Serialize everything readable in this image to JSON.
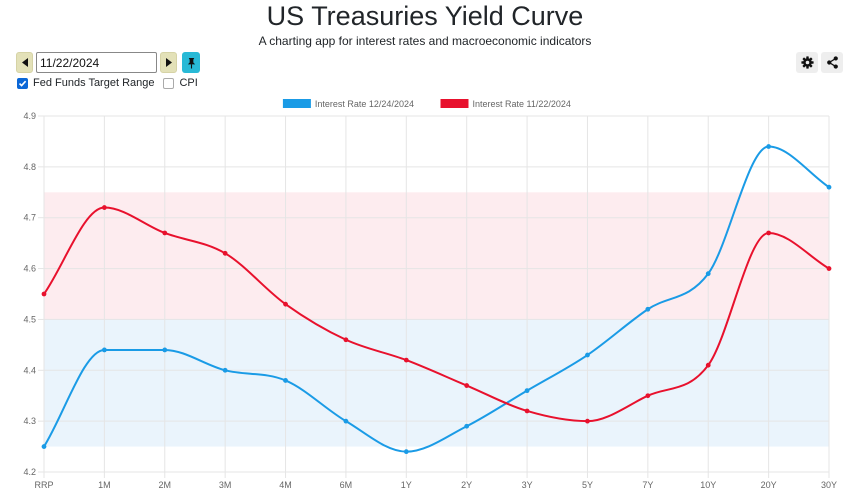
{
  "header": {
    "title": "US Treasuries Yield Curve",
    "subtitle": "A charting app for interest rates and macroeconomic indicators"
  },
  "controls": {
    "date_value": "11/22/2024",
    "options": [
      {
        "label": "Fed Funds Target Range",
        "checked": true
      },
      {
        "label": "CPI",
        "checked": false
      }
    ]
  },
  "chart_data": {
    "type": "line",
    "categories": [
      "RRP",
      "1M",
      "2M",
      "3M",
      "4M",
      "6M",
      "1Y",
      "2Y",
      "3Y",
      "5Y",
      "7Y",
      "10Y",
      "20Y",
      "30Y"
    ],
    "series": [
      {
        "name": "Interest Rate 12/24/2024",
        "color": "#1a9be6",
        "values": [
          4.25,
          4.44,
          4.44,
          4.4,
          4.38,
          4.3,
          4.24,
          4.29,
          4.36,
          4.43,
          4.52,
          4.59,
          4.84,
          4.76
        ]
      },
      {
        "name": "Interest Rate 11/22/2024",
        "color": "#e8112d",
        "values": [
          4.55,
          4.72,
          4.67,
          4.63,
          4.53,
          4.46,
          4.42,
          4.37,
          4.32,
          4.3,
          4.35,
          4.41,
          4.67,
          4.6
        ]
      }
    ],
    "bands": [
      {
        "name": "Fed Funds Target Range 11/22/2024",
        "from": 4.5,
        "to": 4.75,
        "color": "#fdecef"
      },
      {
        "name": "Fed Funds Target Range 12/24/2024",
        "from": 4.25,
        "to": 4.5,
        "color": "#eaf4fc"
      }
    ],
    "yticks": [
      "4.2",
      "4.3",
      "4.4",
      "4.5",
      "4.6",
      "4.7",
      "4.8",
      "4.9"
    ],
    "ylim": [
      4.2,
      4.9
    ],
    "grid": true,
    "legend": "top"
  }
}
